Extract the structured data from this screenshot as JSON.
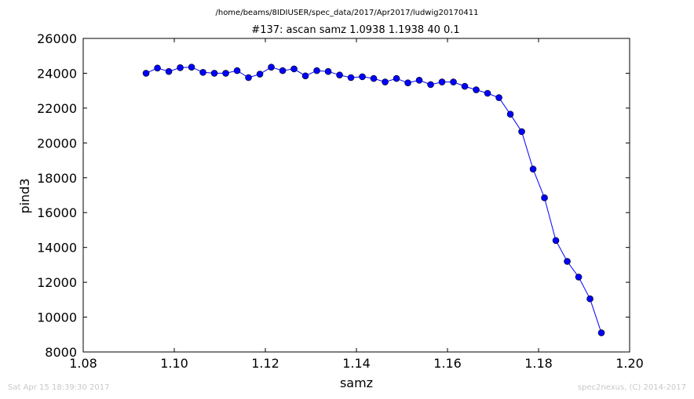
{
  "header": {
    "path": "/home/beams/8IDIUSER/spec_data/2017/Apr2017/ludwig20170411"
  },
  "footer": {
    "timestamp": "Sat Apr 15 18:39:30 2017",
    "credit": "spec2nexus, (C) 2014-2017"
  },
  "chart_data": {
    "type": "line",
    "title": "#137: ascan  samz 1.0938 1.1938  40 0.1",
    "xlabel": "samz",
    "ylabel": "pind3",
    "xlim": [
      1.08,
      1.2
    ],
    "ylim": [
      8000,
      26000
    ],
    "xticks": [
      "1.08",
      "1.10",
      "1.12",
      "1.14",
      "1.16",
      "1.18",
      "1.20"
    ],
    "yticks": [
      "8000",
      "10000",
      "12000",
      "14000",
      "16000",
      "18000",
      "20000",
      "22000",
      "24000",
      "26000"
    ],
    "grid": false,
    "color": "#0000ff",
    "x": [
      1.0938,
      1.0963,
      1.0988,
      1.1013,
      1.1038,
      1.1063,
      1.1088,
      1.1113,
      1.1138,
      1.1163,
      1.1188,
      1.1213,
      1.1238,
      1.1263,
      1.1288,
      1.1313,
      1.1338,
      1.1363,
      1.1388,
      1.1413,
      1.1438,
      1.1463,
      1.1488,
      1.1513,
      1.1538,
      1.1563,
      1.1588,
      1.1613,
      1.1638,
      1.1663,
      1.1688,
      1.1713,
      1.1738,
      1.1763,
      1.1788,
      1.1813,
      1.1838,
      1.1863,
      1.1888,
      1.1913,
      1.1938
    ],
    "y": [
      24000,
      24300,
      24100,
      24320,
      24350,
      24050,
      24000,
      24000,
      24150,
      23750,
      23950,
      24350,
      24150,
      24250,
      23850,
      24150,
      24100,
      23900,
      23750,
      23800,
      23700,
      23500,
      23700,
      23450,
      23600,
      23350,
      23500,
      23500,
      23250,
      23050,
      22850,
      22600,
      21650,
      20650,
      18500,
      16850,
      14400,
      13200,
      12300,
      11050,
      9100
    ]
  }
}
